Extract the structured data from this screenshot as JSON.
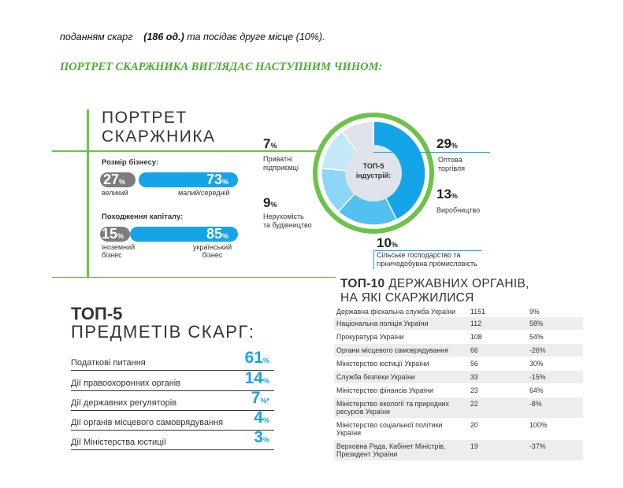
{
  "intro": {
    "pre": "поданням скарг",
    "bold": "(186 од.)",
    "post": "та посідає друге місце (10%)."
  },
  "heading": "ПОРТРЕТ СКАРЖНИКА ВИГЛЯДАЄ НАСТУПНИМ ЧИНОМ:",
  "portrait": {
    "title_line1": "ПОРТРЕТ",
    "title_line2": "СКАРЖНИКА",
    "size": {
      "label": "Розмір бізнесу:",
      "left": {
        "value": "27",
        "unit": "%",
        "caption": "великий"
      },
      "right": {
        "value": "73",
        "unit": "%",
        "caption": "малий/середній"
      }
    },
    "capital": {
      "label": "Походження капіталу:",
      "left": {
        "value": "15",
        "unit": "%",
        "caption_line1": "іноземний",
        "caption_line2": "бізнес"
      },
      "right": {
        "value": "85",
        "unit": "%",
        "caption_line1": "український",
        "caption_line2": "бізнес"
      }
    }
  },
  "industries": {
    "center_line1": "ТОП-5",
    "center_line2": "індустрій:",
    "items": [
      {
        "pct": "29",
        "unit": "%",
        "name_line1": "Оптова",
        "name_line2": "торгівля"
      },
      {
        "pct": "13",
        "unit": "%",
        "name_line1": "Виробництво",
        "name_line2": ""
      },
      {
        "pct": "10",
        "unit": "%",
        "name_line1": "Сільське господарство та",
        "name_line2": "гірничодобувна промисловість"
      },
      {
        "pct": "9",
        "unit": "%",
        "name_line1": "Нерухомість",
        "name_line2": "та будівництво"
      },
      {
        "pct": "7",
        "unit": "%",
        "name_line1": "Приватні",
        "name_line2": "підприємці"
      }
    ],
    "colors": {
      "c29": "#14a5e8",
      "c13": "#52c0f0",
      "c10": "#8dd6f6",
      "c9": "#c3e8fa",
      "c7": "#e0e3ea",
      "ring": "#6cc24a"
    }
  },
  "subjects": {
    "title_line1": "ТОП-5",
    "title_line2": "ПРЕДМЕТІВ СКАРГ:",
    "items": [
      {
        "label": "Податкові питання",
        "value": "61",
        "unit": "%"
      },
      {
        "label": "Дії правоохоронних органів",
        "value": "14",
        "unit": "%"
      },
      {
        "label": "Дії державних регуляторів",
        "value": "7",
        "unit": "%*"
      },
      {
        "label": "Дії органів місцевого самоврядування",
        "value": "4",
        "unit": "%"
      },
      {
        "label": "Дії Міністерства юстиції",
        "value": "3",
        "unit": "%"
      }
    ]
  },
  "top10": {
    "title_bold": "ТОП-10",
    "title_line1_rest": " ДЕРЖАВНИХ ОРГАНІВ,",
    "title_line2": "НА ЯКІ СКАРЖИЛИСЯ",
    "rows": [
      {
        "name": "Державна фіскальна служба України",
        "count": "1151",
        "change": "9%"
      },
      {
        "name": "Національна поліція України",
        "count": "112",
        "change": "58%"
      },
      {
        "name": "Прокуратура України",
        "count": "108",
        "change": "54%"
      },
      {
        "name": "Органи місцевого самоврядування",
        "count": "66",
        "change": "-26%"
      },
      {
        "name": "Міністерство юстиції України",
        "count": "56",
        "change": "30%"
      },
      {
        "name": "Служба безпеки України",
        "count": "33",
        "change": "-15%"
      },
      {
        "name": "Міністерство фінансів України",
        "count": "23",
        "change": "64%"
      },
      {
        "name": "Міністерство екології та природних ресурсів України",
        "count": "22",
        "change": "-8%"
      },
      {
        "name": "Міністерство соціальної політики України",
        "count": "20",
        "change": "100%"
      },
      {
        "name": "Верховна Рада, Кабінет Міністрів, Президент України",
        "count": "19",
        "change": "-37%"
      }
    ]
  }
}
